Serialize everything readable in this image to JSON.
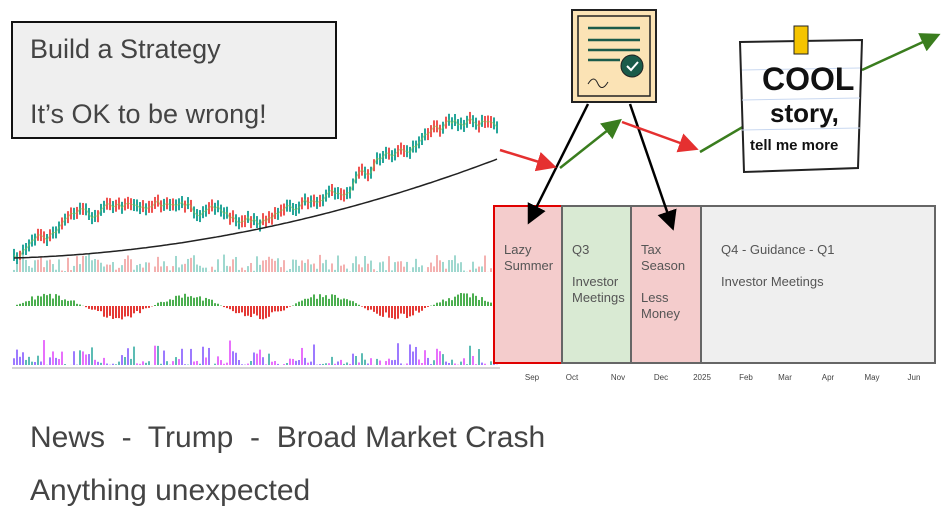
{
  "box": {
    "title": "Build a Strategy",
    "subtitle": "It’s OK to be wrong!"
  },
  "periods": [
    {
      "lines": [
        "Lazy",
        "Summer"
      ]
    },
    {
      "lines": [
        "Q3",
        "",
        "Investor",
        "Meetings"
      ]
    },
    {
      "lines": [
        "Tax",
        "Season",
        "",
        "Less",
        "Money"
      ]
    },
    {
      "lines": [
        "Q4 - Guidance - Q1",
        "",
        "Investor Meetings"
      ]
    }
  ],
  "months": [
    "Sep",
    "Oct",
    "Nov",
    "Dec",
    "2025",
    "Feb",
    "Mar",
    "Apr",
    "May",
    "Jun"
  ],
  "sticker": {
    "lines": [
      "COOL",
      "story,",
      "tell me more"
    ]
  },
  "footer": [
    "News  -  Trump  -  Broad Market Crash",
    "Anything unexpected"
  ]
}
